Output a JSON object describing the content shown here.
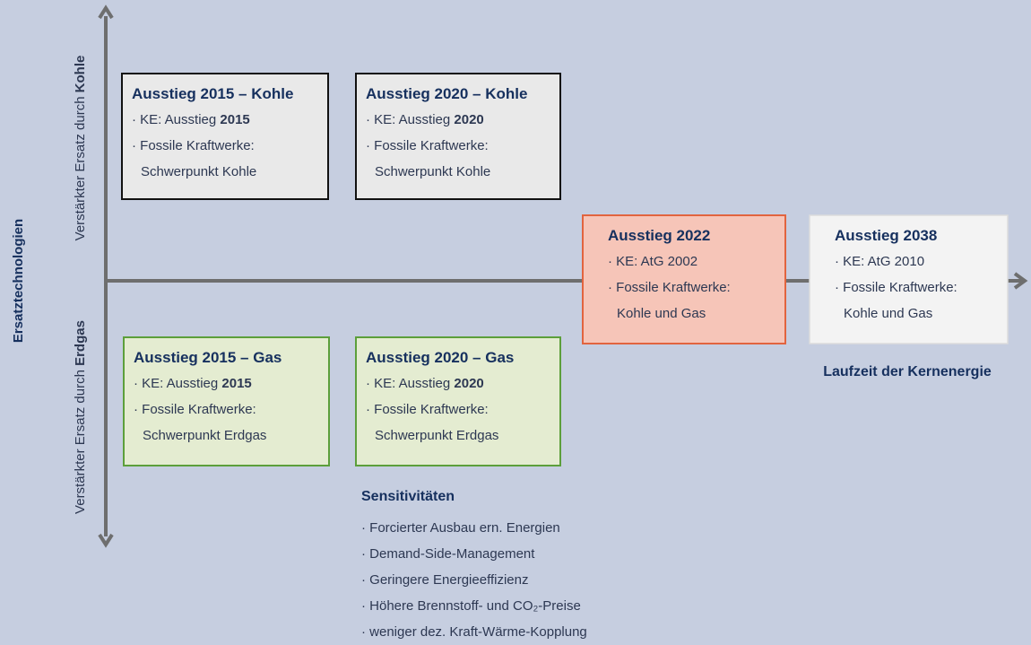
{
  "axis_labels": {
    "main": "Ersatztechnologien",
    "upper": {
      "text": "Verstärkter Ersatz durch ",
      "bold": "Kohle"
    },
    "lower": {
      "text": "Verstärkter Ersatz durch ",
      "bold": "Erdgas"
    },
    "horizontal": "Laufzeit der Kernenergie"
  },
  "boxes": [
    {
      "title": "Ausstieg 2015 – Kohle",
      "lines": [
        {
          "text": "· KE: Ausstieg ",
          "bold": "2015"
        },
        {
          "text": "· Fossile Kraftwerke:"
        },
        {
          "text": "Schwerpunkt Kohle"
        }
      ]
    },
    {
      "title": "Ausstieg 2020 – Kohle",
      "lines": [
        {
          "text": "· KE: Ausstieg ",
          "bold": "2020"
        },
        {
          "text": "· Fossile Kraftwerke:"
        },
        {
          "text": "Schwerpunkt Kohle"
        }
      ]
    },
    {
      "title": "Ausstieg 2022",
      "lines": [
        {
          "text": "· KE: AtG 2002"
        },
        {
          "text": "· Fossile Kraftwerke:"
        },
        {
          "text": "Kohle und Gas"
        }
      ]
    },
    {
      "title": "Ausstieg 2038",
      "lines": [
        {
          "text": "· KE: AtG 2010"
        },
        {
          "text": "· Fossile Kraftwerke:"
        },
        {
          "text": "Kohle und Gas"
        }
      ]
    },
    {
      "title": "Ausstieg 2015 – Gas",
      "lines": [
        {
          "text": "· KE: Ausstieg ",
          "bold": "2015"
        },
        {
          "text": "· Fossile Kraftwerke:"
        },
        {
          "text": "Schwerpunkt Erdgas"
        }
      ]
    },
    {
      "title": "Ausstieg 2020 – Gas",
      "lines": [
        {
          "text": "· KE: Ausstieg ",
          "bold": "2020"
        },
        {
          "text": "· Fossile Kraftwerke:"
        },
        {
          "text": "Schwerpunkt Erdgas"
        }
      ]
    }
  ],
  "sensitivities": {
    "title": "Sensitivitäten",
    "items": [
      "· Forcierter Ausbau ern. Energien",
      "· Demand-Side-Management",
      "· Geringere Energieeffizienz",
      "· Höhere Brennstoff- und CO₂-Preise",
      "· weniger dez. Kraft-Wärme-Kopplung"
    ]
  }
}
